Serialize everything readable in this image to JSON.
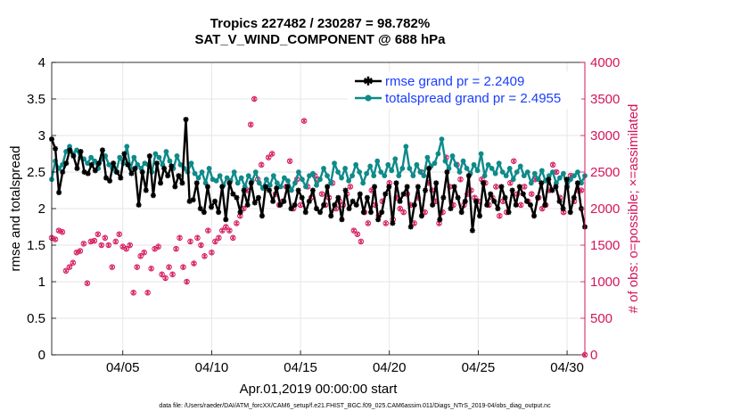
{
  "chart_data": {
    "type": "line",
    "title_line1": "Tropics 227482 / 230287 = 98.782%",
    "title_line2": "SAT_V_WIND_COMPONENT @ 688 hPa",
    "xlabel": "Apr.01,2019 00:00:00 start",
    "ylabel_left": "rmse and totalspread",
    "ylabel_right": "# of obs: o=possible; ×=assimilated",
    "footnote": "data file: /Users/raeder/DAI/ATM_forcXX/CAM6_setup/f.e21.FHIST_BGC.f09_025.CAM6assim.011/Diags_NTrS_2019-04/obs_diag_output.nc",
    "xlim_days": [
      1,
      31
    ],
    "xticks": [
      5,
      10,
      15,
      20,
      25,
      30
    ],
    "xtick_labels": [
      "04/05",
      "04/10",
      "04/15",
      "04/20",
      "04/25",
      "04/30"
    ],
    "ylim_left": [
      0,
      4
    ],
    "yticks_left": [
      "0",
      "0.5",
      "1",
      "1.5",
      "2",
      "2.5",
      "3",
      "3.5",
      "4"
    ],
    "ylim_right": [
      0,
      4000
    ],
    "yticks_right": [
      "0",
      "500",
      "1000",
      "1500",
      "2000",
      "2500",
      "3000",
      "3500",
      "4000"
    ],
    "colors": {
      "rmse": "#000000",
      "spread": "#0f8a8a",
      "obs": "#d4145a",
      "legend_text": "#1a3cff",
      "right_axis": "#d4145a"
    },
    "legend": [
      "rmse grand pr = 2.2409",
      "totalspread grand pr = 2.4955"
    ],
    "rmse": [
      2.95,
      2.82,
      2.22,
      2.5,
      2.62,
      2.8,
      2.72,
      2.55,
      2.78,
      2.5,
      2.48,
      2.6,
      2.52,
      2.62,
      2.8,
      2.42,
      2.38,
      2.62,
      2.5,
      2.42,
      2.75,
      2.6,
      2.48,
      2.55,
      2.05,
      2.5,
      2.25,
      2.72,
      2.18,
      2.62,
      2.35,
      2.55,
      2.45,
      2.58,
      2.3,
      2.45,
      2.35,
      3.22,
      2.1,
      2.12,
      2.35,
      2.0,
      1.95,
      2.3,
      2.02,
      2.1,
      1.95,
      2.3,
      1.85,
      2.35,
      2.2,
      2.15,
      1.95,
      2.25,
      2.05,
      2.35,
      2.08,
      2.15,
      1.9,
      2.3,
      2.25,
      2.1,
      2.28,
      2.05,
      2.1,
      2.3,
      2.0,
      2.05,
      2.25,
      2.15,
      1.95,
      2.1,
      2.25,
      2.0,
      1.95,
      2.05,
      2.3,
      1.9,
      2.05,
      2.15,
      1.85,
      2.25,
      2.0,
      2.1,
      2.05,
      2.2,
      1.95,
      2.15,
      1.95,
      2.3,
      1.85,
      1.95,
      2.2,
      2.3,
      1.8,
      2.35,
      2.1,
      2.2,
      2.3,
      1.75,
      2.05,
      2.3,
      1.9,
      2.25,
      2.55,
      2.05,
      2.35,
      1.85,
      2.15,
      2.5,
      2.0,
      2.3,
      2.15,
      1.95,
      2.1,
      2.45,
      1.7,
      2.1,
      1.9,
      2.35,
      2.05,
      2.2,
      2.1,
      2.0,
      2.3,
      2.15,
      1.95,
      2.25,
      2.05,
      2.3,
      2.2,
      2.1,
      2.05,
      1.9,
      2.15,
      2.35,
      2.05,
      2.4,
      2.25,
      2.3,
      2.1,
      2.0,
      2.4,
      1.95,
      2.15,
      2.35,
      2.0,
      1.75
    ],
    "totalspread": [
      2.4,
      2.65,
      2.55,
      2.6,
      2.78,
      2.85,
      2.75,
      2.8,
      2.7,
      2.68,
      2.62,
      2.7,
      2.65,
      2.55,
      2.68,
      2.72,
      2.6,
      2.55,
      2.5,
      2.7,
      2.62,
      2.85,
      2.55,
      2.7,
      2.6,
      2.55,
      2.62,
      2.6,
      2.5,
      2.75,
      2.7,
      2.6,
      2.78,
      2.65,
      2.55,
      2.72,
      2.6,
      2.55,
      2.5,
      2.62,
      2.48,
      2.42,
      2.5,
      2.35,
      2.55,
      2.4,
      2.38,
      2.45,
      2.32,
      2.42,
      2.38,
      2.5,
      2.35,
      2.42,
      2.3,
      2.45,
      2.38,
      2.5,
      2.35,
      2.28,
      2.4,
      2.32,
      2.45,
      2.35,
      2.3,
      2.42,
      2.38,
      2.25,
      2.35,
      2.5,
      2.4,
      2.3,
      2.45,
      2.48,
      2.32,
      2.4,
      2.55,
      2.45,
      2.35,
      2.62,
      2.5,
      2.42,
      2.55,
      2.38,
      2.45,
      2.6,
      2.5,
      2.35,
      2.48,
      2.58,
      2.45,
      2.65,
      2.5,
      2.45,
      2.6,
      2.52,
      2.68,
      2.45,
      2.55,
      2.85,
      2.55,
      2.45,
      2.6,
      2.5,
      2.45,
      2.7,
      2.58,
      2.62,
      2.75,
      2.95,
      2.65,
      2.55,
      2.72,
      2.6,
      2.5,
      2.65,
      2.55,
      2.48,
      2.6,
      2.52,
      2.75,
      2.45,
      2.6,
      2.55,
      2.48,
      2.62,
      2.5,
      2.45,
      2.55,
      2.4,
      2.5,
      2.58,
      2.45,
      2.5,
      2.35,
      2.48,
      2.4,
      2.52,
      2.38,
      2.45,
      2.5,
      2.35,
      2.42,
      2.48,
      2.3,
      2.4,
      2.45,
      2.5,
      2.35,
      2.45
    ],
    "obs_assimilated": [
      1600,
      1580,
      1700,
      1680,
      1150,
      1200,
      1260,
      1400,
      1420,
      1520,
      980,
      1550,
      1560,
      1650,
      1500,
      1600,
      1500,
      1200,
      1550,
      1650,
      1480,
      1450,
      1500,
      850,
      1200,
      1350,
      1400,
      850,
      1180,
      1450,
      1480,
      1100,
      1050,
      1200,
      1100,
      1450,
      1600,
      1200,
      1000,
      1550,
      1250,
      1600,
      1500,
      1350,
      1700,
      1400,
      1550,
      1600,
      1700,
      1750,
      1700,
      1600,
      1800,
      1900,
      2000,
      2250,
      3150,
      3500,
      2400,
      2600,
      2300,
      2700,
      2750,
      2200,
      2050,
      2100,
      2300,
      2650,
      2000,
      2400,
      2050,
      3200,
      2300,
      2150,
      2450,
      2400,
      2200,
      2050,
      2150,
      2350,
      2000,
      2100,
      2050,
      2200,
      2300,
      1700,
      1650,
      1550,
      1950,
      1800,
      2250,
      2050,
      1900,
      2100,
      1800,
      2350,
      1850,
      2150,
      2000,
      1950,
      2200,
      2050,
      1800,
      2150,
      2500,
      1950,
      2350,
      2250,
      2100,
      1800,
      1950,
      2700,
      2300,
      2050,
      2600,
      2400,
      2050,
      2200,
      2250,
      2150,
      2100,
      2400,
      2350,
      2050,
      2150,
      2300,
      1900,
      2100,
      1950,
      2350,
      2650,
      2200,
      2050,
      2300,
      2100,
      2200,
      2400,
      2150,
      2000,
      2050,
      2250,
      2600,
      2500,
      2150,
      1950,
      2300,
      2450,
      2100,
      2250,
      2250,
      0
    ]
  }
}
